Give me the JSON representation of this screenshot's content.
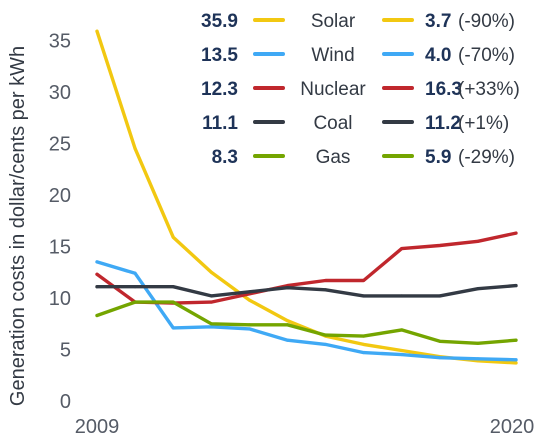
{
  "chart_data": {
    "type": "line",
    "ylabel": "Generation costs in dollar/cents per kWh",
    "x_tick_labels": [
      "2009",
      "2020"
    ],
    "x": [
      2009,
      2010,
      2011,
      2012,
      2013,
      2014,
      2015,
      2016,
      2017,
      2018,
      2019,
      2020
    ],
    "xlim": [
      2009,
      2020
    ],
    "ylim": [
      0,
      37
    ],
    "yticks": [
      0,
      5,
      10,
      15,
      20,
      25,
      30,
      35
    ],
    "grid": false,
    "legend_position": "top-right",
    "series": [
      {
        "name": "Solar",
        "color": "#f2c811",
        "start_label": "35.9",
        "end_label": "3.7",
        "change_label": "(-90%)",
        "values": [
          35.9,
          24.5,
          15.9,
          12.5,
          9.8,
          7.8,
          6.3,
          5.5,
          4.9,
          4.3,
          3.9,
          3.7
        ]
      },
      {
        "name": "Wind",
        "color": "#3fa9f5",
        "start_label": "13.5",
        "end_label": "4.0",
        "change_label": "(-70%)",
        "values": [
          13.5,
          12.4,
          7.1,
          7.2,
          7.0,
          5.9,
          5.5,
          4.7,
          4.5,
          4.2,
          4.1,
          4.0
        ]
      },
      {
        "name": "Nuclear",
        "color": "#c0272d",
        "start_label": "12.3",
        "end_label": "16.3",
        "change_label": "(+33%)",
        "values": [
          12.3,
          9.6,
          9.5,
          9.6,
          10.4,
          11.2,
          11.7,
          11.7,
          14.8,
          15.1,
          15.5,
          16.3
        ]
      },
      {
        "name": "Coal",
        "color": "#333a44",
        "start_label": "11.1",
        "end_label": "11.2",
        "change_label": "(+1%)",
        "values": [
          11.1,
          11.1,
          11.1,
          10.2,
          10.6,
          11.0,
          10.8,
          10.2,
          10.2,
          10.2,
          10.9,
          11.2
        ]
      },
      {
        "name": "Gas",
        "color": "#74a500",
        "start_label": "8.3",
        "end_label": "5.9",
        "change_label": "(-29%)",
        "values": [
          8.3,
          9.6,
          9.6,
          7.5,
          7.4,
          7.4,
          6.4,
          6.3,
          6.9,
          5.8,
          5.6,
          5.9
        ]
      }
    ]
  }
}
